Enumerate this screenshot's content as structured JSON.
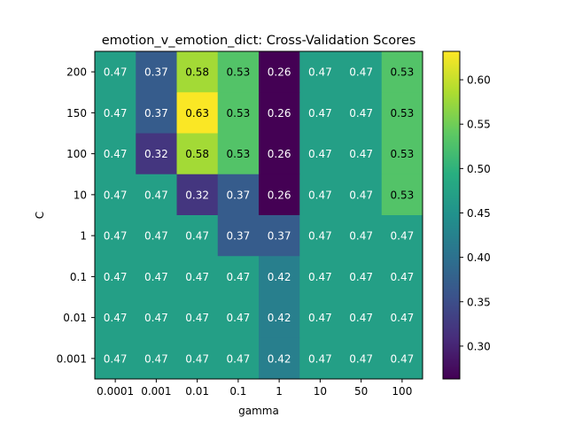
{
  "chart_data": {
    "type": "heatmap",
    "title": "emotion_v_emotion_dict: Cross-Validation Scores",
    "xlabel": "gamma",
    "ylabel": "C",
    "x_categories": [
      "0.0001",
      "0.001",
      "0.01",
      "0.1",
      "1",
      "10",
      "50",
      "100"
    ],
    "y_categories": [
      "200",
      "150",
      "100",
      "10",
      "1",
      "0.1",
      "0.01",
      "0.001"
    ],
    "values": [
      [
        0.47,
        0.37,
        0.58,
        0.53,
        0.26,
        0.47,
        0.47,
        0.53
      ],
      [
        0.47,
        0.37,
        0.63,
        0.53,
        0.26,
        0.47,
        0.47,
        0.53
      ],
      [
        0.47,
        0.32,
        0.58,
        0.53,
        0.26,
        0.47,
        0.47,
        0.53
      ],
      [
        0.47,
        0.47,
        0.32,
        0.37,
        0.26,
        0.47,
        0.47,
        0.53
      ],
      [
        0.47,
        0.47,
        0.47,
        0.37,
        0.37,
        0.47,
        0.47,
        0.47
      ],
      [
        0.47,
        0.47,
        0.47,
        0.47,
        0.42,
        0.47,
        0.47,
        0.47
      ],
      [
        0.47,
        0.47,
        0.47,
        0.47,
        0.42,
        0.47,
        0.47,
        0.47
      ],
      [
        0.47,
        0.47,
        0.47,
        0.47,
        0.42,
        0.47,
        0.47,
        0.47
      ]
    ],
    "colormap": "viridis",
    "color_range": [
      0.263,
      0.632
    ],
    "colorbar_ticks": [
      "0.30",
      "0.35",
      "0.40",
      "0.45",
      "0.50",
      "0.55",
      "0.60"
    ],
    "grid": false,
    "legend": "colorbar-right"
  }
}
